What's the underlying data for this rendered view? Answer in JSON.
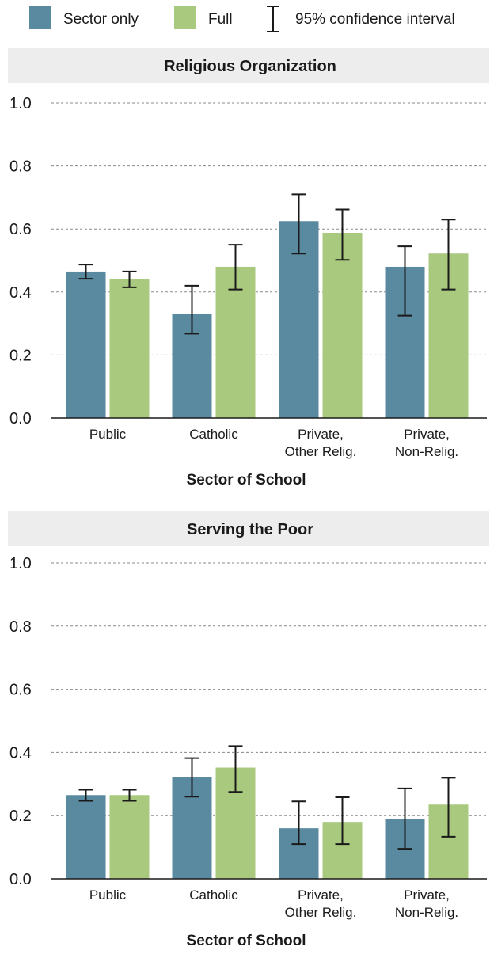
{
  "legend": {
    "items": [
      {
        "label": "Sector only",
        "color": "#5a8aa0"
      },
      {
        "label": "Full",
        "color": "#a9c97e"
      },
      {
        "label": "95% confidence interval",
        "color": "#1a1a1a"
      }
    ]
  },
  "chart_data": [
    {
      "type": "bar",
      "title": "Religious Organization",
      "xlabel": "Sector of School",
      "ylabel": "",
      "ylim": [
        0,
        1.0
      ],
      "yticks": [
        "0.0",
        "0.2",
        "0.4",
        "0.6",
        "0.8",
        "1.0"
      ],
      "grid": true,
      "legend": "top",
      "categories": [
        [
          "Public"
        ],
        [
          "Catholic"
        ],
        [
          "Private,",
          "Other Relig."
        ],
        [
          "Private,",
          "Non-Relig."
        ]
      ],
      "series": [
        {
          "name": "Sector only",
          "color": "#5a8aa0",
          "values": [
            0.465,
            0.33,
            0.625,
            0.48
          ],
          "ci_low": [
            0.442,
            0.268,
            0.522,
            0.325
          ],
          "ci_high": [
            0.487,
            0.42,
            0.71,
            0.545
          ]
        },
        {
          "name": "Full",
          "color": "#a9c97e",
          "values": [
            0.44,
            0.48,
            0.588,
            0.522
          ],
          "ci_low": [
            0.415,
            0.408,
            0.502,
            0.408
          ],
          "ci_high": [
            0.465,
            0.55,
            0.662,
            0.63
          ]
        }
      ]
    },
    {
      "type": "bar",
      "title": "Serving the Poor",
      "xlabel": "Sector of School",
      "ylabel": "",
      "ylim": [
        0,
        1.0
      ],
      "yticks": [
        "0.0",
        "0.2",
        "0.4",
        "0.6",
        "0.8",
        "1.0"
      ],
      "grid": true,
      "legend": "top",
      "categories": [
        [
          "Public"
        ],
        [
          "Catholic"
        ],
        [
          "Private,",
          "Other Relig."
        ],
        [
          "Private,",
          "Non-Relig."
        ]
      ],
      "series": [
        {
          "name": "Sector only",
          "color": "#5a8aa0",
          "values": [
            0.265,
            0.322,
            0.16,
            0.19
          ],
          "ci_low": [
            0.247,
            0.26,
            0.11,
            0.095
          ],
          "ci_high": [
            0.282,
            0.382,
            0.245,
            0.286
          ]
        },
        {
          "name": "Full",
          "color": "#a9c97e",
          "values": [
            0.265,
            0.352,
            0.18,
            0.235
          ],
          "ci_low": [
            0.247,
            0.275,
            0.11,
            0.133
          ],
          "ci_high": [
            0.282,
            0.42,
            0.258,
            0.32
          ]
        }
      ]
    }
  ]
}
